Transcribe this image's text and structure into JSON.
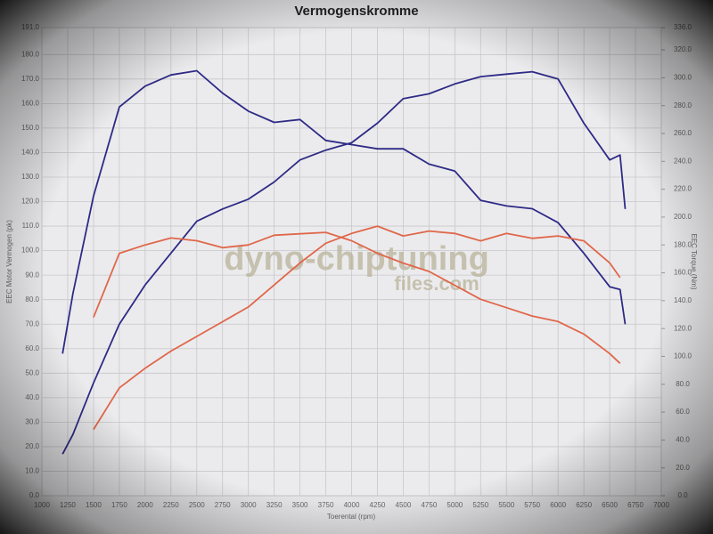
{
  "chart_data": {
    "type": "line",
    "title": "Vermogenskromme",
    "x_label": "Toerental (rpm)",
    "y_label": "EEC Motor Vermogen (pk)",
    "y2_label": "EEC Torque (Nm)",
    "watermark": [
      "dyno-chiptuning",
      "files.com"
    ],
    "x": [
      1200,
      1300,
      1500,
      1750,
      2000,
      2250,
      2500,
      2750,
      3000,
      3250,
      3500,
      3750,
      4000,
      4250,
      4500,
      4750,
      5000,
      5250,
      5500,
      5750,
      6000,
      6250,
      6500,
      6600,
      6650
    ],
    "series": [
      {
        "color": "#2e2a86",
        "values": [
          17,
          25,
          46,
          70,
          86,
          99,
          112,
          117,
          121,
          128,
          137,
          141,
          144,
          152,
          162,
          164,
          168,
          171,
          172,
          173,
          170,
          152,
          137,
          139,
          117
        ]
      },
      {
        "color": "#2e2a86",
        "axis": "y2",
        "values": [
          102,
          145,
          215,
          279,
          294,
          302,
          305,
          289,
          276,
          268,
          270,
          255,
          252,
          249,
          249,
          238,
          233,
          212,
          208,
          206,
          196,
          174,
          150,
          148,
          123
        ]
      },
      {
        "color": "#e0674a",
        "values": [
          null,
          null,
          27,
          44,
          52,
          59,
          65,
          71,
          77,
          86,
          95,
          103,
          107,
          110,
          106,
          108,
          107,
          104,
          107,
          105,
          106,
          104,
          95,
          89,
          null
        ]
      },
      {
        "color": "#e0674a",
        "axis": "y2",
        "values": [
          null,
          null,
          128,
          174,
          180,
          185,
          183,
          178,
          180,
          187,
          188,
          189,
          183,
          174,
          167,
          161,
          151,
          141,
          135,
          129,
          125,
          116,
          102,
          95,
          null
        ]
      }
    ],
    "xlim": [
      1000,
      7000
    ],
    "xticks": [
      1000,
      1250,
      1500,
      1750,
      2000,
      2250,
      2500,
      2750,
      3000,
      3250,
      3500,
      3750,
      4000,
      4250,
      4500,
      4750,
      5000,
      5250,
      5500,
      5750,
      6000,
      6250,
      6500,
      6750,
      7000
    ],
    "ylim": [
      0,
      191
    ],
    "yticks": [
      {
        "value": 0,
        "label": "0.0"
      },
      {
        "value": 10,
        "label": "10.0"
      },
      {
        "value": 20,
        "label": "20.0"
      },
      {
        "value": 30,
        "label": "30.0"
      },
      {
        "value": 40,
        "label": "40.0"
      },
      {
        "value": 50,
        "label": "50.0"
      },
      {
        "value": 60,
        "label": "60.0"
      },
      {
        "value": 70,
        "label": "70.0"
      },
      {
        "value": 80,
        "label": "80.0"
      },
      {
        "value": 90,
        "label": "90.0"
      },
      {
        "value": 100,
        "label": "100.0"
      },
      {
        "value": 110,
        "label": "110.0"
      },
      {
        "value": 120,
        "label": "120.0"
      },
      {
        "value": 130,
        "label": "130.0"
      },
      {
        "value": 140,
        "label": "140.0"
      },
      {
        "value": 150,
        "label": "150.0"
      },
      {
        "value": 160,
        "label": "160.0"
      },
      {
        "value": 170,
        "label": "170.0"
      },
      {
        "value": 180,
        "label": "180.0"
      },
      {
        "value": 191,
        "label": "191.0"
      }
    ],
    "y2lim": [
      0,
      336
    ],
    "y2ticks": [
      {
        "value": 0,
        "label": "0.0"
      },
      {
        "value": 20,
        "label": "20.0"
      },
      {
        "value": 40,
        "label": "40.0"
      },
      {
        "value": 60,
        "label": "60.0"
      },
      {
        "value": 80,
        "label": "80.0"
      },
      {
        "value": 100,
        "label": "100.0"
      },
      {
        "value": 120,
        "label": "120.0"
      },
      {
        "value": 140,
        "label": "140.0"
      },
      {
        "value": 160,
        "label": "160.0"
      },
      {
        "value": 180,
        "label": "180.0"
      },
      {
        "value": 200,
        "label": "200.0"
      },
      {
        "value": 220,
        "label": "220.0"
      },
      {
        "value": 240,
        "label": "240.0"
      },
      {
        "value": 260,
        "label": "260.0"
      },
      {
        "value": 280,
        "label": "280.0"
      },
      {
        "value": 300,
        "label": "300.0"
      },
      {
        "value": 320,
        "label": "320.0"
      },
      {
        "value": 336,
        "label": "336.0"
      }
    ],
    "grid": true
  }
}
